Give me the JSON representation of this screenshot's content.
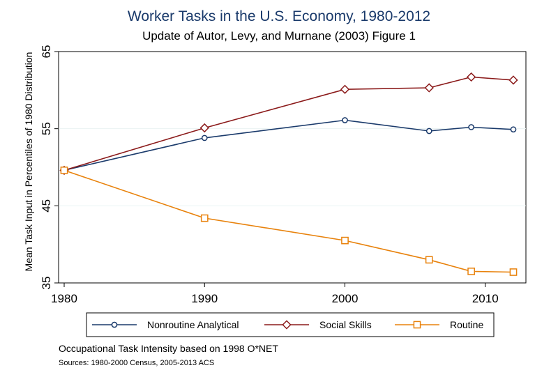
{
  "chart_data": {
    "type": "line",
    "title": "Worker Tasks in the U.S. Economy, 1980-2012",
    "subtitle": "Update of Autor, Levy, and Murnane (2003) Figure 1",
    "xlabel": "",
    "ylabel": "Mean Task Input in Percentiles of 1980 Distribution",
    "xlim": [
      1980,
      2012
    ],
    "ylim": [
      35,
      65
    ],
    "xticks": [
      1980,
      1990,
      2000,
      2010
    ],
    "yticks": [
      35,
      45,
      55,
      65
    ],
    "grid": true,
    "legend_position": "bottom",
    "x": [
      1980,
      1990,
      2000,
      2006,
      2009,
      2012
    ],
    "series": [
      {
        "name": "Nonroutine Analytical",
        "color": "#1a3a6b",
        "marker": "circle",
        "values": [
          49.6,
          53.8,
          56.1,
          54.7,
          55.2,
          54.9
        ]
      },
      {
        "name": "Social Skills",
        "color": "#8b1a1a",
        "marker": "diamond",
        "values": [
          49.6,
          55.1,
          60.1,
          60.3,
          61.7,
          61.3
        ]
      },
      {
        "name": "Routine",
        "color": "#e8820c",
        "marker": "square",
        "values": [
          49.6,
          43.4,
          40.5,
          38.0,
          36.5,
          36.4
        ]
      }
    ],
    "notes": [
      "Occupational Task Intensity based on 1998 O*NET",
      "Sources: 1980-2000 Census, 2005-2013 ACS"
    ]
  }
}
